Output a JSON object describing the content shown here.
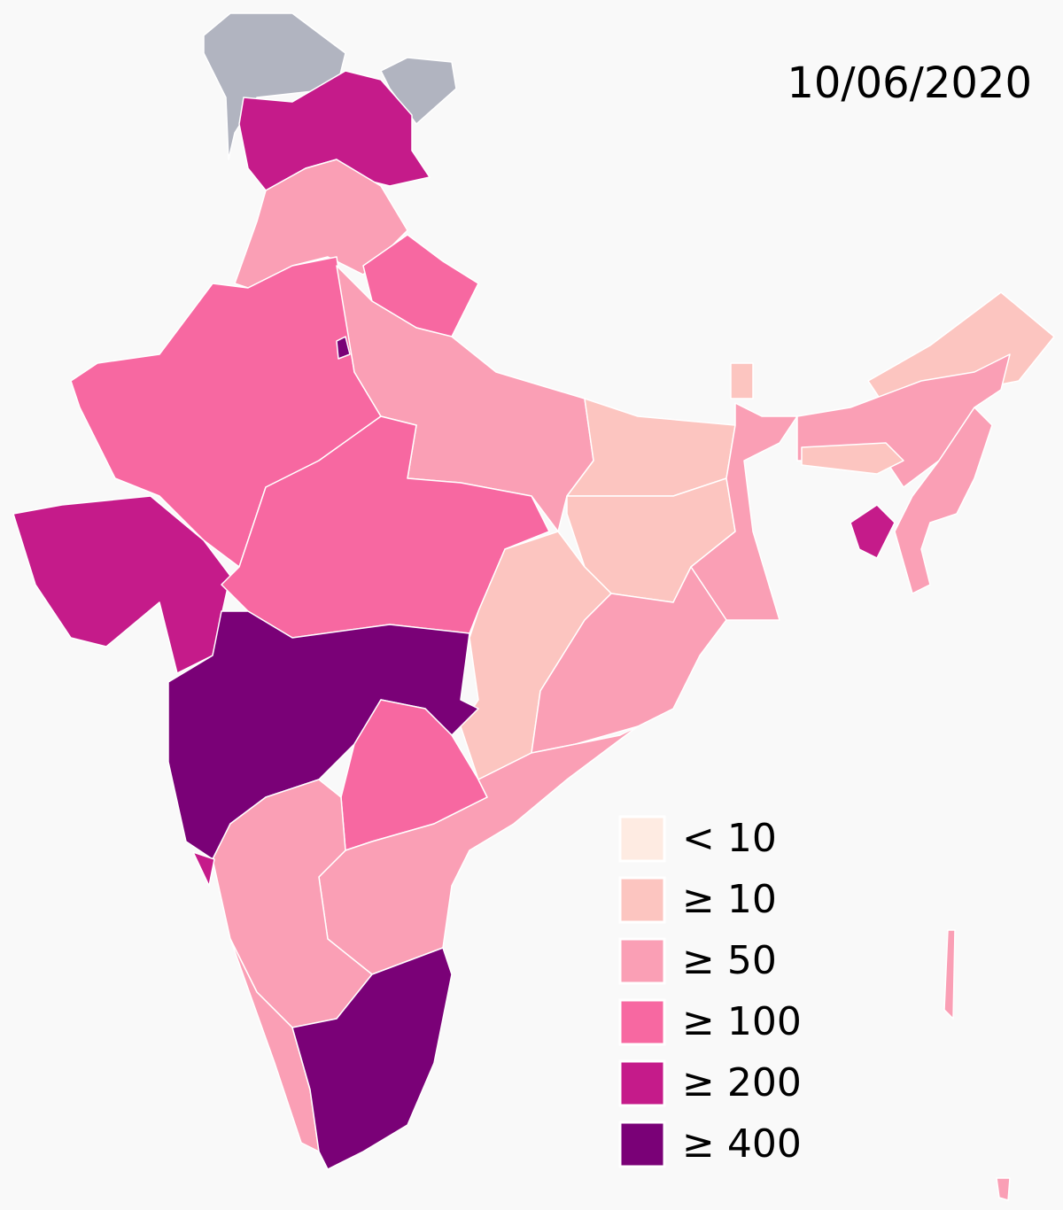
{
  "date": "10/06/2020",
  "legend": {
    "items": [
      {
        "label": "< 10",
        "color": "#feebe2"
      },
      {
        "label": "≥ 10",
        "color": "#fcc5c0"
      },
      {
        "label": "≥ 50",
        "color": "#fa9fb5"
      },
      {
        "label": "≥ 100",
        "color": "#f768a1"
      },
      {
        "label": "≥ 200",
        "color": "#c51b8a"
      },
      {
        "label": "≥ 400",
        "color": "#7a0177"
      }
    ]
  },
  "map": {
    "no_data_color": "#b1b4c0"
  }
}
